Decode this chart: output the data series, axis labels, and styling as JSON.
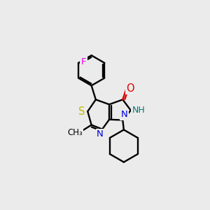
{
  "background_color": "#ebebeb",
  "colors": {
    "C": "#000000",
    "N": "#0000dd",
    "O": "#dd0000",
    "S": "#bbbb00",
    "F": "#ee00ee",
    "NH": "#007777",
    "bond": "#000000"
  },
  "figsize": [
    3.0,
    3.0
  ],
  "dpi": 100
}
